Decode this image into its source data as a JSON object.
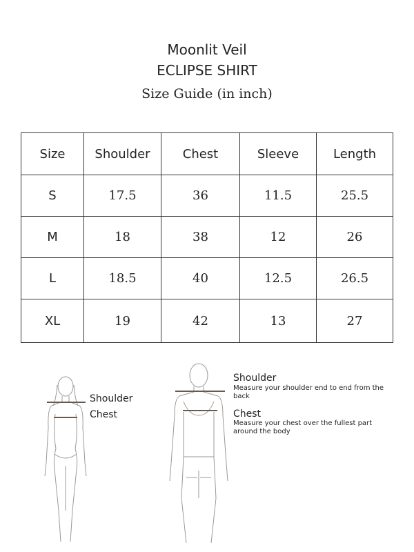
{
  "header": {
    "brand": "Moonlit Veil",
    "product": "ECLIPSE SHIRT",
    "subtitle": "Size Guide (in inch)"
  },
  "table": {
    "headers": [
      "Size",
      "Shoulder",
      "Chest",
      "Sleeve",
      "Length"
    ],
    "rows": [
      [
        "S",
        "17.5",
        "36",
        "11.5",
        "25.5"
      ],
      [
        "M",
        "18",
        "38",
        "12",
        "26"
      ],
      [
        "L",
        "18.5",
        "40",
        "12.5",
        "26.5"
      ],
      [
        "XL",
        "19",
        "42",
        "13",
        "27"
      ]
    ]
  },
  "female_figure": {
    "shoulder": "Shoulder",
    "chest": "Chest"
  },
  "male_figure": {
    "shoulder_title": "Shoulder",
    "shoulder_desc": "Measure your shoulder end to end from the back",
    "chest_title": "Chest",
    "chest_desc": "Measure your chest over the fullest part around the body"
  },
  "colors": {
    "measure_line": "#6b5a4a"
  }
}
